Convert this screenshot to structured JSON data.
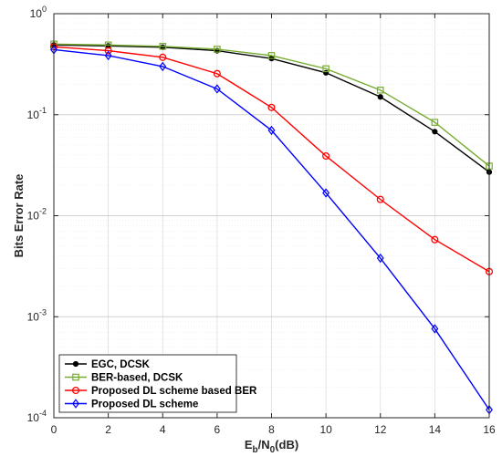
{
  "chart_data": {
    "type": "line",
    "xlabel_main": "E",
    "xlabel_sub1": "b",
    "xlabel_mid": "/N",
    "xlabel_sub2": "0",
    "xlabel_tail": "(dB)",
    "ylabel": "Bits Error Rate",
    "xlim": [
      0,
      16
    ],
    "ylim": [
      0.0001,
      1
    ],
    "yscale": "log",
    "grid": true,
    "legend_position": "bottom-left",
    "x": [
      0,
      2,
      4,
      6,
      8,
      10,
      12,
      14,
      16
    ],
    "x_ticks": [
      "0",
      "2",
      "4",
      "6",
      "8",
      "10",
      "12",
      "14",
      "16"
    ],
    "y_ticks": [
      {
        "base": "10",
        "exp": "0"
      },
      {
        "base": "10",
        "exp": "-1"
      },
      {
        "base": "10",
        "exp": "-2"
      },
      {
        "base": "10",
        "exp": "-3"
      },
      {
        "base": "10",
        "exp": "-4"
      }
    ],
    "series": [
      {
        "name": "EGC, DCSK",
        "color": "#000000",
        "marker": "dot",
        "values": [
          0.49,
          0.48,
          0.465,
          0.43,
          0.36,
          0.26,
          0.15,
          0.068,
          0.027
        ]
      },
      {
        "name": "BER-based, DCSK",
        "color": "#77ac30",
        "marker": "square",
        "values": [
          0.5,
          0.49,
          0.475,
          0.445,
          0.385,
          0.285,
          0.175,
          0.084,
          0.031
        ]
      },
      {
        "name": "Proposed DL scheme based BER",
        "color": "#ff0000",
        "marker": "circle",
        "values": [
          0.47,
          0.43,
          0.37,
          0.255,
          0.118,
          0.039,
          0.0145,
          0.0058,
          0.0028
        ]
      },
      {
        "name": "Proposed DL scheme",
        "color": "#0000ff",
        "marker": "diamond",
        "values": [
          0.44,
          0.385,
          0.3,
          0.18,
          0.07,
          0.0168,
          0.0038,
          0.00076,
          0.00012
        ]
      }
    ]
  }
}
